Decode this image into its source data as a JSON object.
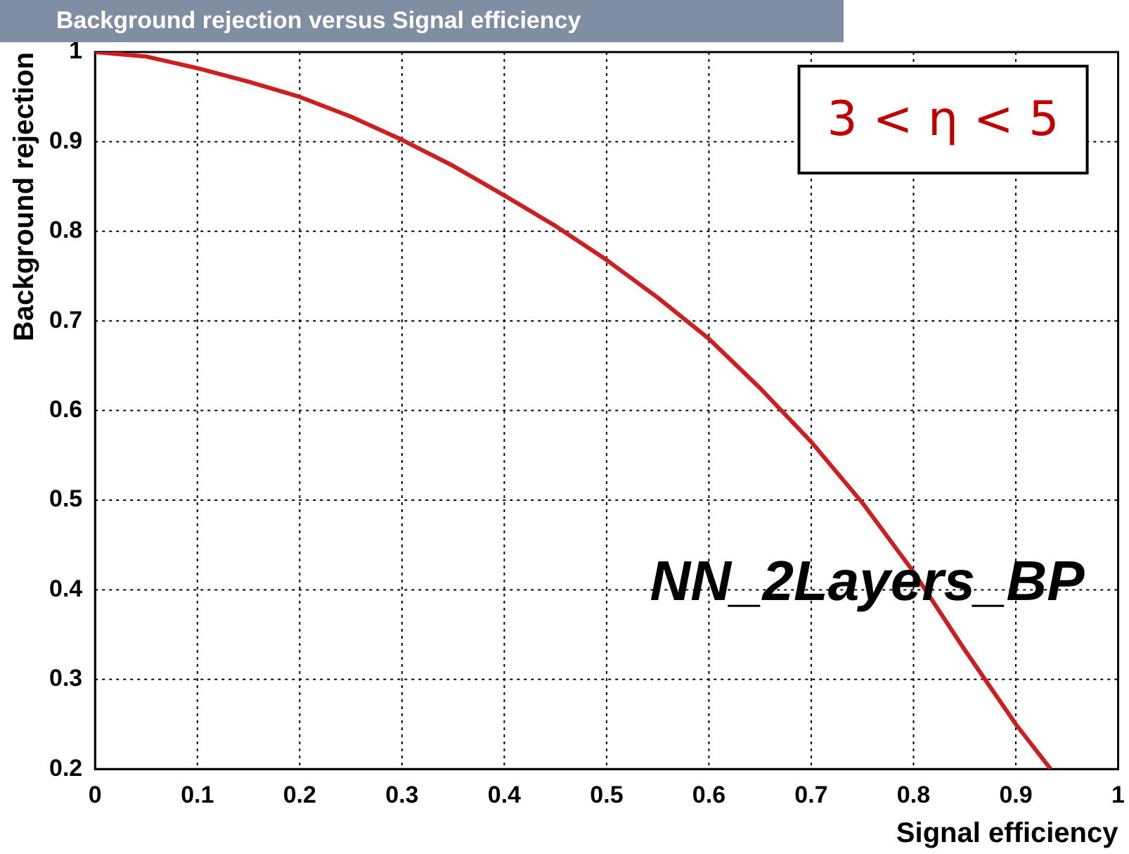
{
  "chart_data": {
    "type": "line",
    "title": "Background rejection versus Signal efficiency",
    "xlabel": "Signal efficiency",
    "ylabel": "Background rejection",
    "annotations": [
      "3 < η < 5",
      "NN_2Layers_BP"
    ],
    "x": [
      0,
      0.05,
      0.1,
      0.15,
      0.2,
      0.25,
      0.3,
      0.35,
      0.4,
      0.45,
      0.5,
      0.55,
      0.6,
      0.65,
      0.7,
      0.75,
      0.8,
      0.85,
      0.9,
      0.934
    ],
    "series": [
      {
        "color": "#cc1f1f",
        "values": [
          1,
          0.995,
          0.982,
          0.967,
          0.95,
          0.928,
          0.902,
          0.873,
          0.84,
          0.806,
          0.768,
          0.726,
          0.68,
          0.625,
          0.565,
          0.497,
          0.42,
          0.333,
          0.25,
          0.2
        ]
      }
    ],
    "xlim": [
      0,
      1
    ],
    "ylim": [
      0.2,
      1
    ],
    "xticks": [
      0,
      0.1,
      0.2,
      0.3,
      0.4,
      0.5,
      0.6,
      0.7,
      0.8,
      0.9,
      1
    ],
    "yticks": [
      0.2,
      0.3,
      0.4,
      0.5,
      0.6,
      0.7,
      0.8,
      0.9,
      1
    ],
    "grid": true,
    "legend": false,
    "marker": "none",
    "line_style": "solid"
  }
}
